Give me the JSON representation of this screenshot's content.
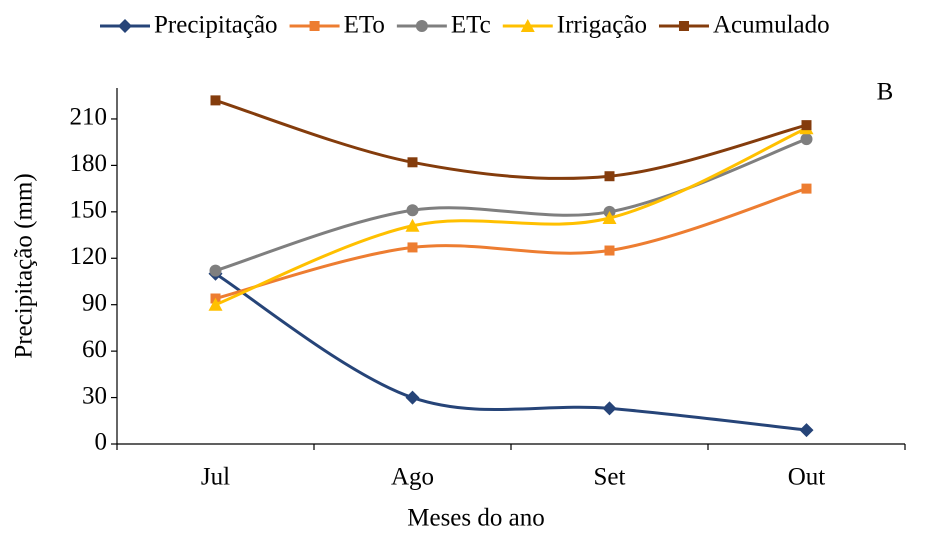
{
  "chart_data": {
    "type": "line",
    "ylabel": "Precipitação (mm)",
    "xlabel": "Meses do ano",
    "annotation": "B",
    "categories": [
      "Jul",
      "Ago",
      "Set",
      "Out"
    ],
    "series": [
      {
        "name": "Precipitação",
        "color": "#264478",
        "marker": "diamond",
        "values": [
          110,
          30,
          23,
          9
        ]
      },
      {
        "name": "ETo",
        "color": "#ed7d31",
        "marker": "square",
        "values": [
          94,
          127,
          125,
          165
        ]
      },
      {
        "name": "ETc",
        "color": "#7f7f7f",
        "marker": "circle",
        "values": [
          112,
          151,
          150,
          197
        ]
      },
      {
        "name": "Irrigação",
        "color": "#ffc000",
        "marker": "triangle",
        "values": [
          90,
          141,
          146,
          204
        ]
      },
      {
        "name": "Acumulado",
        "color": "#843c0c",
        "marker": "square",
        "values": [
          222,
          182,
          173,
          206
        ]
      }
    ],
    "ylim": [
      0,
      230
    ],
    "yticks": [
      0,
      30,
      60,
      90,
      120,
      150,
      180,
      210
    ],
    "smooth": true,
    "legend": "top"
  }
}
